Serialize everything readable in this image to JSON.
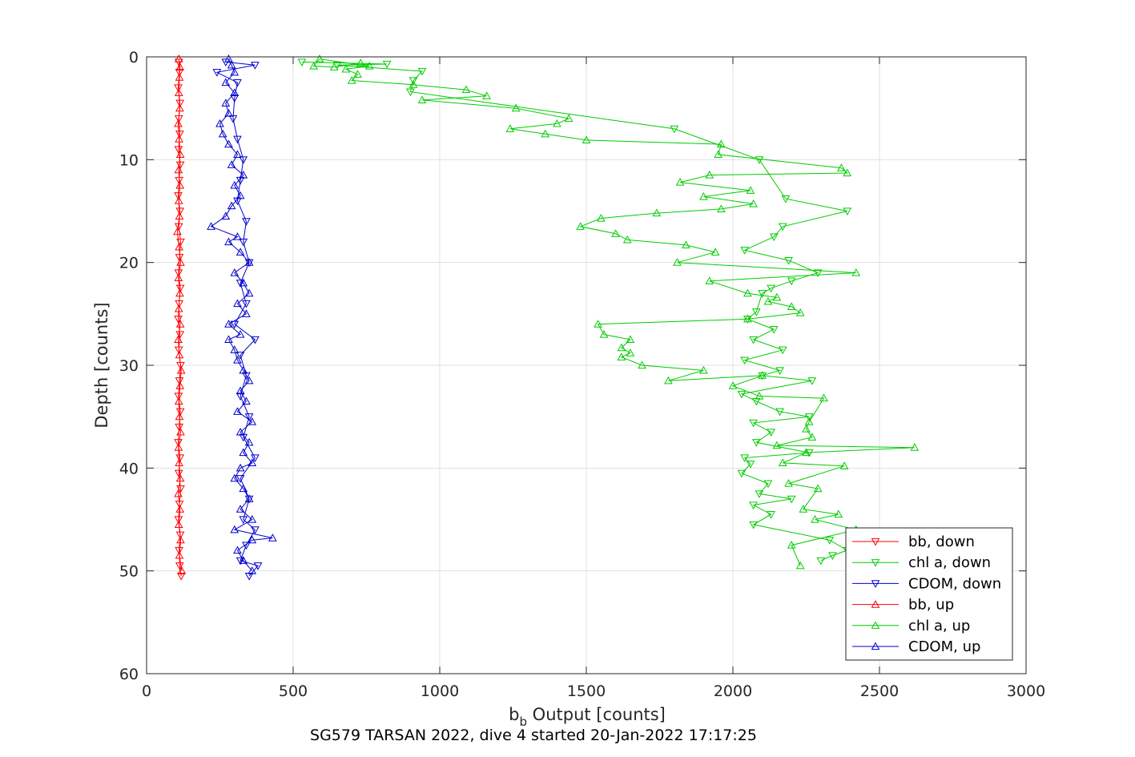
{
  "chart_data": {
    "type": "line",
    "xlabel_main": "b",
    "xlabel_sub": "b",
    "xlabel_rest": " Output [counts]",
    "ylabel": "Depth [counts]",
    "caption": "SG579 TARSAN 2022, dive 4 started 20-Jan-2022 17:17:25",
    "xlim": [
      0,
      3000
    ],
    "ylim": [
      0,
      60
    ],
    "y_reversed": true,
    "grid": true,
    "xticks": [
      "0",
      "500",
      "1000",
      "1500",
      "2000",
      "2500",
      "3000"
    ],
    "yticks": [
      "0",
      "10",
      "20",
      "30",
      "40",
      "50",
      "60"
    ],
    "legend_position": "bottom-right",
    "series": [
      {
        "name": "bb, down",
        "color": "#ff0000",
        "marker": "triangle-down",
        "points": [
          [
            110,
            0.5
          ],
          [
            112,
            1.5
          ],
          [
            108,
            3
          ],
          [
            114,
            4.5
          ],
          [
            110,
            6
          ],
          [
            113,
            7.5
          ],
          [
            109,
            9
          ],
          [
            115,
            10.5
          ],
          [
            111,
            12
          ],
          [
            108,
            13.5
          ],
          [
            114,
            15
          ],
          [
            110,
            16.5
          ],
          [
            116,
            18
          ],
          [
            112,
            19.5
          ],
          [
            109,
            21
          ],
          [
            115,
            22.5
          ],
          [
            111,
            24
          ],
          [
            108,
            25.5
          ],
          [
            114,
            27
          ],
          [
            110,
            28.5
          ],
          [
            116,
            30
          ],
          [
            112,
            31.5
          ],
          [
            109,
            33
          ],
          [
            115,
            34.5
          ],
          [
            111,
            36
          ],
          [
            108,
            37.5
          ],
          [
            114,
            39
          ],
          [
            110,
            40.5
          ],
          [
            116,
            42
          ],
          [
            112,
            43.5
          ],
          [
            109,
            45
          ],
          [
            115,
            46.5
          ],
          [
            111,
            48
          ],
          [
            113,
            49.5
          ],
          [
            118,
            50.5
          ]
        ]
      },
      {
        "name": "chl a, down",
        "color": "#00cc00",
        "marker": "triangle-down",
        "points": [
          [
            530,
            0.5
          ],
          [
            820,
            0.7
          ],
          [
            650,
            0.8
          ],
          [
            940,
            1.4
          ],
          [
            910,
            2.3
          ],
          [
            900,
            3.4
          ],
          [
            1800,
            7
          ],
          [
            2090,
            10
          ],
          [
            2180,
            13.8
          ],
          [
            2390,
            15
          ],
          [
            2170,
            16.5
          ],
          [
            2140,
            17.5
          ],
          [
            2040,
            18.8
          ],
          [
            2190,
            19.8
          ],
          [
            2290,
            21
          ],
          [
            2200,
            21.8
          ],
          [
            2130,
            22.5
          ],
          [
            2100,
            23
          ],
          [
            2080,
            24.8
          ],
          [
            2050,
            25.5
          ],
          [
            2140,
            26.5
          ],
          [
            2070,
            27.5
          ],
          [
            2170,
            28.5
          ],
          [
            2040,
            29.5
          ],
          [
            2160,
            30.5
          ],
          [
            2100,
            31
          ],
          [
            2270,
            31.5
          ],
          [
            2030,
            32.8
          ],
          [
            2080,
            33.5
          ],
          [
            2160,
            34.5
          ],
          [
            2260,
            35
          ],
          [
            2070,
            35.6
          ],
          [
            2130,
            36.5
          ],
          [
            2080,
            37.5
          ],
          [
            2260,
            38.5
          ],
          [
            2040,
            39
          ],
          [
            2060,
            39.6
          ],
          [
            2030,
            40.5
          ],
          [
            2120,
            41.5
          ],
          [
            2090,
            42.5
          ],
          [
            2200,
            43
          ],
          [
            2070,
            43.6
          ],
          [
            2130,
            44.5
          ],
          [
            2070,
            45.5
          ],
          [
            2330,
            47
          ],
          [
            2390,
            48
          ],
          [
            2340,
            48.5
          ],
          [
            2300,
            49
          ]
        ]
      },
      {
        "name": "CDOM, down",
        "color": "#0000cc",
        "marker": "triangle-down",
        "points": [
          [
            270,
            0.5
          ],
          [
            370,
            0.8
          ],
          [
            240,
            1.5
          ],
          [
            310,
            2.5
          ],
          [
            300,
            4
          ],
          [
            295,
            6
          ],
          [
            310,
            8
          ],
          [
            330,
            10
          ],
          [
            320,
            12
          ],
          [
            310,
            14
          ],
          [
            340,
            16
          ],
          [
            330,
            18
          ],
          [
            350,
            20
          ],
          [
            320,
            22
          ],
          [
            340,
            24
          ],
          [
            300,
            26
          ],
          [
            370,
            27.5
          ],
          [
            320,
            29
          ],
          [
            340,
            31
          ],
          [
            320,
            33
          ],
          [
            350,
            35
          ],
          [
            330,
            37
          ],
          [
            370,
            39
          ],
          [
            320,
            41
          ],
          [
            350,
            43
          ],
          [
            330,
            45
          ],
          [
            370,
            46
          ],
          [
            340,
            47.5
          ],
          [
            320,
            49
          ],
          [
            380,
            49.5
          ],
          [
            350,
            50.5
          ]
        ]
      },
      {
        "name": "bb, up",
        "color": "#ff0000",
        "marker": "triangle-up",
        "points": [
          [
            120,
            50
          ],
          [
            112,
            48.5
          ],
          [
            116,
            47
          ],
          [
            110,
            45.5
          ],
          [
            114,
            44
          ],
          [
            108,
            42.5
          ],
          [
            115,
            41
          ],
          [
            111,
            39.5
          ],
          [
            109,
            38
          ],
          [
            116,
            36.5
          ],
          [
            112,
            35
          ],
          [
            110,
            33.5
          ],
          [
            114,
            32
          ],
          [
            118,
            30.5
          ],
          [
            112,
            29
          ],
          [
            108,
            27.5
          ],
          [
            115,
            26
          ],
          [
            110,
            24.5
          ],
          [
            113,
            23
          ],
          [
            109,
            21.5
          ],
          [
            116,
            20
          ],
          [
            111,
            18.5
          ],
          [
            105,
            17
          ],
          [
            112,
            15.5
          ],
          [
            110,
            14
          ],
          [
            114,
            12.5
          ],
          [
            109,
            11
          ],
          [
            115,
            9.5
          ],
          [
            111,
            8
          ],
          [
            108,
            6.5
          ],
          [
            113,
            5
          ],
          [
            110,
            3.5
          ],
          [
            112,
            2
          ],
          [
            114,
            1
          ],
          [
            110,
            0.2
          ]
        ]
      },
      {
        "name": "chl a, up",
        "color": "#00cc00",
        "marker": "triangle-up",
        "points": [
          [
            2230,
            49.5
          ],
          [
            2200,
            47.5
          ],
          [
            2420,
            46
          ],
          [
            2280,
            45
          ],
          [
            2360,
            44.5
          ],
          [
            2240,
            44
          ],
          [
            2290,
            42
          ],
          [
            2190,
            41.5
          ],
          [
            2380,
            39.8
          ],
          [
            2170,
            39.5
          ],
          [
            2250,
            38.5
          ],
          [
            2620,
            38
          ],
          [
            2150,
            37.8
          ],
          [
            2270,
            37
          ],
          [
            2250,
            36.2
          ],
          [
            2260,
            35.5
          ],
          [
            2310,
            33.2
          ],
          [
            2090,
            33
          ],
          [
            2000,
            32
          ],
          [
            2100,
            31
          ],
          [
            1780,
            31.5
          ],
          [
            1900,
            30.5
          ],
          [
            1690,
            30
          ],
          [
            1620,
            29.2
          ],
          [
            1650,
            28.8
          ],
          [
            1620,
            28.3
          ],
          [
            1650,
            27.5
          ],
          [
            1560,
            27
          ],
          [
            1540,
            26
          ],
          [
            2050,
            25.5
          ],
          [
            2230,
            24.9
          ],
          [
            2200,
            24.3
          ],
          [
            2120,
            23.8
          ],
          [
            2150,
            23.4
          ],
          [
            2050,
            23
          ],
          [
            1920,
            21.8
          ],
          [
            2420,
            21
          ],
          [
            1810,
            20
          ],
          [
            1940,
            19
          ],
          [
            1840,
            18.3
          ],
          [
            1640,
            17.8
          ],
          [
            1600,
            17.2
          ],
          [
            1480,
            16.5
          ],
          [
            1550,
            15.7
          ],
          [
            1740,
            15.2
          ],
          [
            1960,
            14.8
          ],
          [
            2070,
            14.3
          ],
          [
            1900,
            13.6
          ],
          [
            2060,
            13
          ],
          [
            1820,
            12.2
          ],
          [
            1920,
            11.5
          ],
          [
            2390,
            11.3
          ],
          [
            2370,
            10.8
          ],
          [
            1950,
            9.5
          ],
          [
            1960,
            8.5
          ],
          [
            1500,
            8.1
          ],
          [
            1360,
            7.5
          ],
          [
            1240,
            7
          ],
          [
            1400,
            6.5
          ],
          [
            1440,
            6
          ],
          [
            1260,
            5
          ],
          [
            940,
            4.2
          ],
          [
            1160,
            3.8
          ],
          [
            1090,
            3.2
          ],
          [
            910,
            2.7
          ],
          [
            700,
            2.3
          ],
          [
            720,
            1.7
          ],
          [
            680,
            1.2
          ],
          [
            760,
            0.9
          ],
          [
            590,
            0.2
          ],
          [
            570,
            0.9
          ],
          [
            640,
            1
          ],
          [
            730,
            0.6
          ]
        ]
      },
      {
        "name": "CDOM, up",
        "color": "#0000cc",
        "marker": "triangle-up",
        "points": [
          [
            360,
            50
          ],
          [
            330,
            49
          ],
          [
            310,
            48
          ],
          [
            360,
            47
          ],
          [
            430,
            46.8
          ],
          [
            300,
            46
          ],
          [
            360,
            45
          ],
          [
            320,
            44
          ],
          [
            350,
            43
          ],
          [
            330,
            42
          ],
          [
            300,
            41
          ],
          [
            320,
            40
          ],
          [
            360,
            39.5
          ],
          [
            330,
            38.5
          ],
          [
            350,
            37.5
          ],
          [
            320,
            36.5
          ],
          [
            360,
            35.5
          ],
          [
            310,
            34.5
          ],
          [
            340,
            33.5
          ],
          [
            320,
            32.5
          ],
          [
            350,
            31.5
          ],
          [
            330,
            30.5
          ],
          [
            310,
            29.5
          ],
          [
            300,
            28.5
          ],
          [
            280,
            27.5
          ],
          [
            320,
            27
          ],
          [
            280,
            26
          ],
          [
            340,
            25
          ],
          [
            310,
            24
          ],
          [
            350,
            23
          ],
          [
            330,
            22
          ],
          [
            300,
            21
          ],
          [
            350,
            20
          ],
          [
            320,
            19
          ],
          [
            280,
            18
          ],
          [
            310,
            17.5
          ],
          [
            220,
            16.5
          ],
          [
            270,
            15.5
          ],
          [
            290,
            14.5
          ],
          [
            320,
            13.5
          ],
          [
            300,
            12.5
          ],
          [
            330,
            11.5
          ],
          [
            290,
            10.5
          ],
          [
            310,
            9.5
          ],
          [
            280,
            8.5
          ],
          [
            260,
            7.5
          ],
          [
            250,
            6.5
          ],
          [
            280,
            5.5
          ],
          [
            270,
            4.5
          ],
          [
            300,
            3.5
          ],
          [
            270,
            2.5
          ],
          [
            300,
            1.5
          ],
          [
            290,
            0.8
          ],
          [
            280,
            0.2
          ]
        ]
      }
    ]
  }
}
